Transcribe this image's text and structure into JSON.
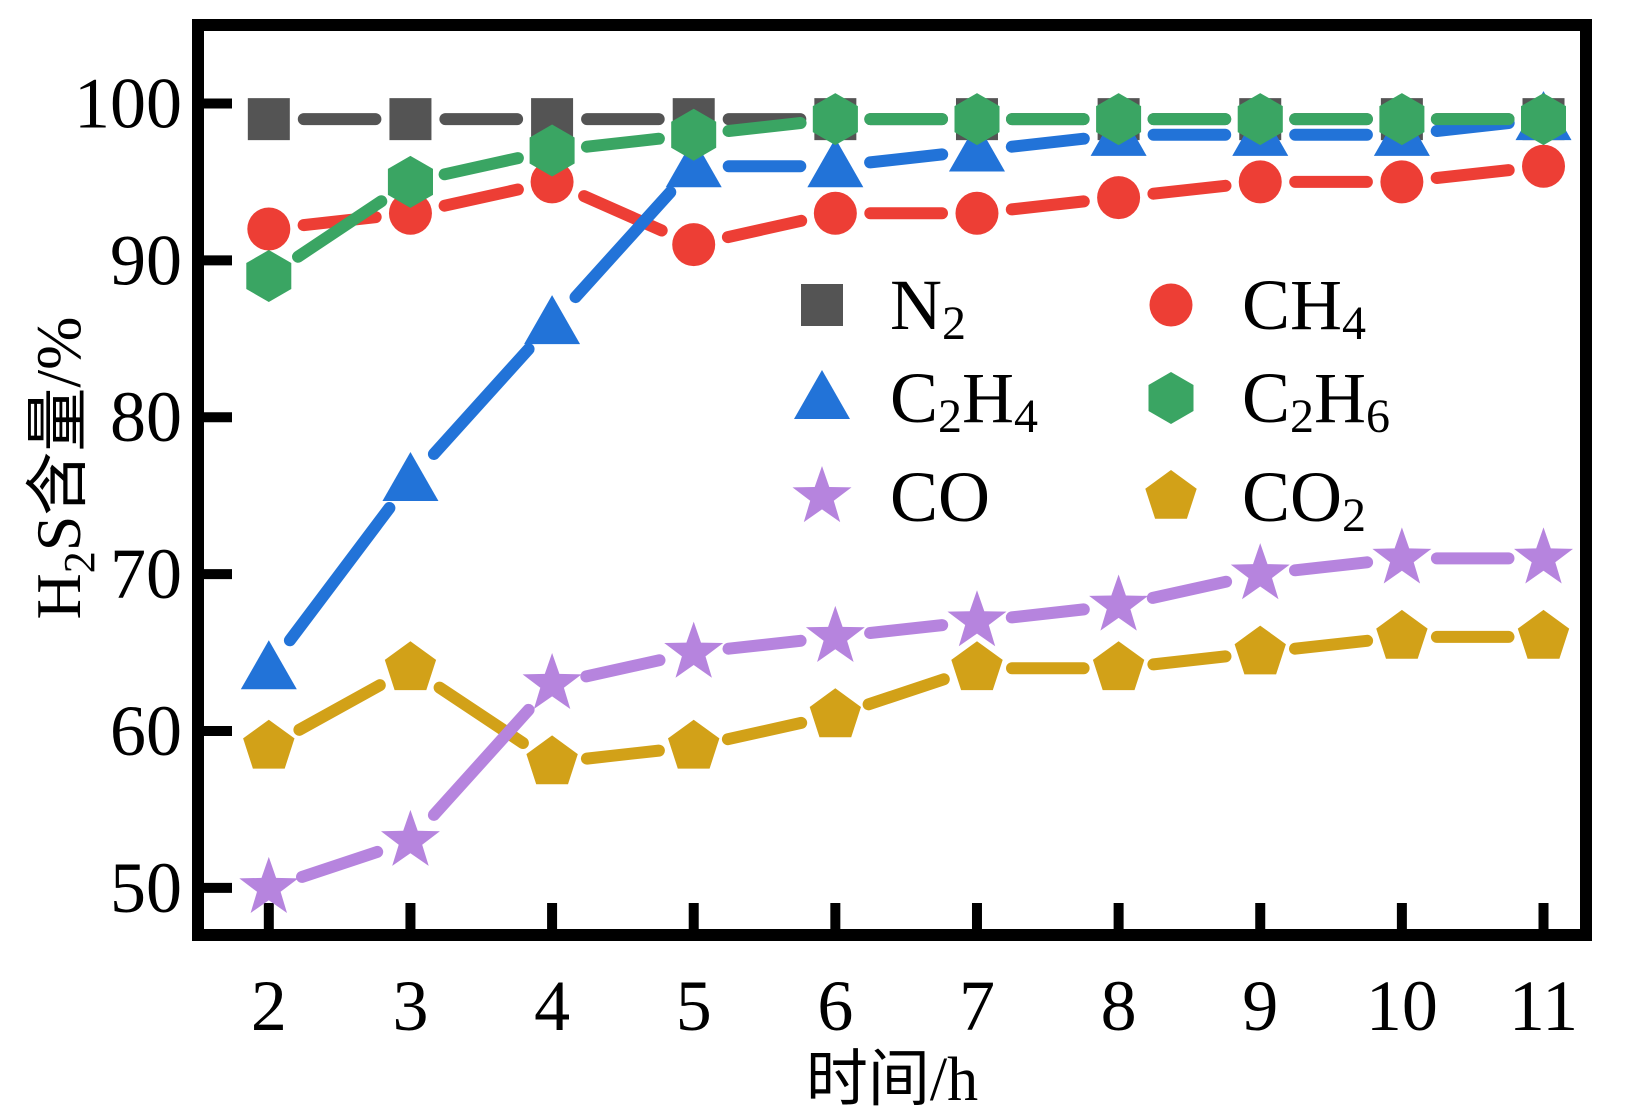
{
  "figure": {
    "background": "#ffffff",
    "axis_color": "#000000",
    "text_color": "#000000"
  },
  "chart_data": {
    "type": "line",
    "title": "",
    "xlabel": "时间/h",
    "ylabel": "H2S含量/%",
    "ylabel_parts": [
      "H",
      "2",
      "S含量/%"
    ],
    "x": [
      2,
      3,
      4,
      5,
      6,
      7,
      8,
      9,
      10,
      11
    ],
    "x_ticks": [
      2,
      3,
      4,
      5,
      6,
      7,
      8,
      9,
      10,
      11
    ],
    "y_ticks": [
      50,
      60,
      70,
      80,
      90,
      100
    ],
    "xlim": [
      1.5,
      11.3
    ],
    "ylim": [
      47,
      105
    ],
    "grid": false,
    "legend_position": "inside upper-right area, two columns, no frame",
    "series": [
      {
        "name": "N2",
        "marker": "square",
        "color": "#545454",
        "values": [
          99,
          99,
          99,
          99,
          99,
          99,
          99,
          99,
          99,
          99
        ],
        "label_parts": [
          {
            "t": "N"
          },
          {
            "t": "2",
            "sub": true
          }
        ]
      },
      {
        "name": "CH4",
        "marker": "circle",
        "color": "#ed3e35",
        "values": [
          92,
          93,
          95,
          91,
          93,
          93,
          94,
          95,
          95,
          96
        ],
        "label_parts": [
          {
            "t": "CH"
          },
          {
            "t": "4",
            "sub": true
          }
        ]
      },
      {
        "name": "C2H4",
        "marker": "triangle-up",
        "color": "#2273d8",
        "values": [
          64,
          76,
          86,
          96,
          96,
          97,
          98,
          98,
          98,
          99
        ],
        "label_parts": [
          {
            "t": "C"
          },
          {
            "t": "2",
            "sub": true
          },
          {
            "t": "H"
          },
          {
            "t": "4",
            "sub": true
          }
        ]
      },
      {
        "name": "C2H6",
        "marker": "hexagon",
        "color": "#3aa563",
        "values": [
          89,
          95,
          97,
          98,
          99,
          99,
          99,
          99,
          99,
          99
        ],
        "label_parts": [
          {
            "t": "C"
          },
          {
            "t": "2",
            "sub": true
          },
          {
            "t": "H"
          },
          {
            "t": "6",
            "sub": true
          }
        ]
      },
      {
        "name": "CO2",
        "marker": "pentagon",
        "color": "#d2a118",
        "values": [
          59,
          64,
          58,
          59,
          61,
          64,
          64,
          65,
          66,
          66
        ],
        "label_parts": [
          {
            "t": "CO"
          },
          {
            "t": "2",
            "sub": true
          }
        ]
      },
      {
        "name": "CO",
        "marker": "star",
        "color": "#b684de",
        "values": [
          50,
          53,
          63,
          65,
          66,
          67,
          68,
          70,
          71,
          71
        ],
        "label_parts": [
          {
            "t": "CO"
          }
        ]
      }
    ],
    "legend": {
      "columns": [
        [
          "N2",
          "C2H4",
          "CO"
        ],
        [
          "CH4",
          "C2H6",
          "CO2"
        ]
      ]
    }
  }
}
